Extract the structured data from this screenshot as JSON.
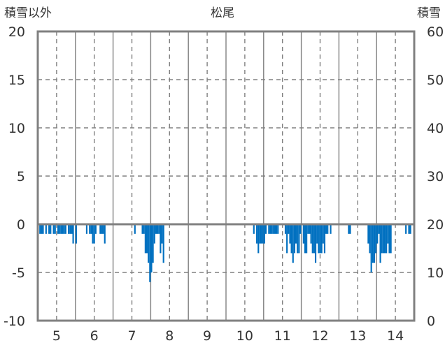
{
  "chart_data": {
    "type": "bar",
    "title": "松尾",
    "ylabel_left": "積雪以外",
    "ylabel_right": "積雪",
    "x_ticks": [
      "5",
      "6",
      "7",
      "8",
      "9",
      "10",
      "11",
      "12",
      "13",
      "14"
    ],
    "xlim": [
      4.5,
      14.5
    ],
    "ylim_left": [
      -10,
      20
    ],
    "ylim_right": [
      0,
      60
    ],
    "y_ticks_left": [
      "20",
      "15",
      "10",
      "5",
      "0",
      "-5",
      "-10"
    ],
    "y_ticks_right": [
      "60",
      "50",
      "40",
      "30",
      "20",
      "10",
      "0"
    ],
    "grid": true,
    "colors": {
      "bars": "#0070C0",
      "frame": "#808080",
      "grid": "#808080",
      "zero_line": "#808080"
    },
    "series": [
      {
        "values_left": [
          [
            4.56,
            -1
          ],
          [
            4.6,
            -1
          ],
          [
            4.64,
            -1
          ],
          [
            4.72,
            -1
          ],
          [
            4.8,
            -1
          ],
          [
            4.84,
            -1
          ],
          [
            4.92,
            -1
          ],
          [
            4.96,
            -1
          ],
          [
            5.04,
            -1
          ],
          [
            5.08,
            -1
          ],
          [
            5.12,
            -1
          ],
          [
            5.16,
            -1
          ],
          [
            5.2,
            -1
          ],
          [
            5.24,
            -1
          ],
          [
            5.32,
            -1
          ],
          [
            5.36,
            -1
          ],
          [
            5.4,
            -1
          ],
          [
            5.44,
            -2
          ],
          [
            5.52,
            -2
          ],
          [
            5.8,
            -1
          ],
          [
            5.88,
            -1
          ],
          [
            5.92,
            -1
          ],
          [
            5.96,
            -2
          ],
          [
            6.0,
            -2
          ],
          [
            6.04,
            -1
          ],
          [
            6.16,
            -1
          ],
          [
            6.2,
            -1
          ],
          [
            6.24,
            -1
          ],
          [
            6.28,
            -2
          ],
          [
            7.08,
            -1
          ],
          [
            7.28,
            -1
          ],
          [
            7.32,
            -1
          ],
          [
            7.36,
            -3
          ],
          [
            7.4,
            -3
          ],
          [
            7.44,
            -4
          ],
          [
            7.48,
            -6
          ],
          [
            7.52,
            -5
          ],
          [
            7.56,
            -4
          ],
          [
            7.6,
            -2
          ],
          [
            7.64,
            -1
          ],
          [
            7.68,
            -1
          ],
          [
            7.72,
            -1
          ],
          [
            7.76,
            -3
          ],
          [
            7.8,
            -2
          ],
          [
            7.84,
            -4
          ],
          [
            10.24,
            -1
          ],
          [
            10.32,
            -2
          ],
          [
            10.36,
            -3
          ],
          [
            10.4,
            -2
          ],
          [
            10.44,
            -2
          ],
          [
            10.48,
            -2
          ],
          [
            10.52,
            -2
          ],
          [
            10.56,
            -1
          ],
          [
            10.64,
            -1
          ],
          [
            10.68,
            -1
          ],
          [
            10.72,
            -1
          ],
          [
            10.76,
            -1
          ],
          [
            10.8,
            -1
          ],
          [
            10.84,
            -1
          ],
          [
            10.88,
            -1
          ],
          [
            11.08,
            -1
          ],
          [
            11.12,
            -3
          ],
          [
            11.16,
            -1
          ],
          [
            11.2,
            -2
          ],
          [
            11.24,
            -3
          ],
          [
            11.28,
            -4
          ],
          [
            11.32,
            -3
          ],
          [
            11.36,
            -2
          ],
          [
            11.4,
            -3
          ],
          [
            11.44,
            -3
          ],
          [
            11.48,
            -1
          ],
          [
            11.56,
            -2
          ],
          [
            11.6,
            -3
          ],
          [
            11.64,
            -3
          ],
          [
            11.68,
            -1
          ],
          [
            11.72,
            -1
          ],
          [
            11.76,
            -2
          ],
          [
            11.8,
            -3
          ],
          [
            11.84,
            -3
          ],
          [
            11.88,
            -4
          ],
          [
            11.92,
            -2
          ],
          [
            11.96,
            -3
          ],
          [
            12.0,
            -3
          ],
          [
            12.04,
            -3
          ],
          [
            12.08,
            -2
          ],
          [
            12.12,
            -3
          ],
          [
            12.16,
            -1
          ],
          [
            12.2,
            -1
          ],
          [
            12.28,
            -1
          ],
          [
            12.76,
            -1
          ],
          [
            12.8,
            -1
          ],
          [
            13.28,
            -2
          ],
          [
            13.32,
            -3
          ],
          [
            13.36,
            -5
          ],
          [
            13.4,
            -4
          ],
          [
            13.44,
            -4
          ],
          [
            13.48,
            -3
          ],
          [
            13.52,
            -2
          ],
          [
            13.56,
            -1
          ],
          [
            13.6,
            -4
          ],
          [
            13.64,
            -3
          ],
          [
            13.68,
            -3
          ],
          [
            13.72,
            -3
          ],
          [
            13.76,
            -3
          ],
          [
            13.8,
            -2
          ],
          [
            13.84,
            -3
          ],
          [
            13.88,
            -3
          ],
          [
            14.28,
            -1
          ],
          [
            14.36,
            -1
          ],
          [
            14.4,
            -1
          ]
        ]
      }
    ]
  }
}
